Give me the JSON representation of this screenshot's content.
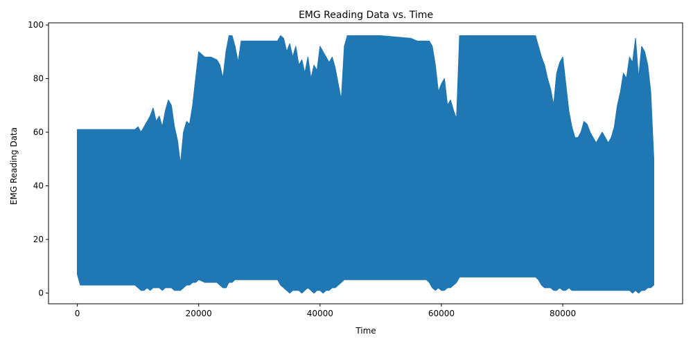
{
  "chart_data": {
    "type": "line",
    "title": "EMG Reading Data vs. Time",
    "xlabel": "Time",
    "ylabel": "EMG Reading Data",
    "xlim": [
      -4750,
      99750
    ],
    "ylim": [
      -4,
      100.8
    ],
    "x_ticks": [
      0,
      20000,
      40000,
      60000,
      80000
    ],
    "x_tick_labels": [
      "0",
      "20000",
      "40000",
      "60000",
      "80000"
    ],
    "y_ticks": [
      0,
      20,
      40,
      60,
      80,
      100
    ],
    "y_tick_labels": [
      "0",
      "20",
      "40",
      "60",
      "80",
      "100"
    ],
    "grid": false,
    "legend": "none",
    "colors": {
      "line": "#1f77b4",
      "frame": "#000000",
      "background": "#ffffff"
    },
    "series": [
      {
        "x": [
          0,
          500,
          2000,
          5000,
          8000,
          9500,
          10000,
          10500,
          11000,
          11500,
          12000,
          12500,
          13000,
          13500,
          14000,
          14500,
          15000,
          15500,
          16000,
          16500,
          17000,
          17500,
          18000,
          18500,
          19000,
          19500,
          20000,
          21000,
          22000,
          23000,
          23500,
          24000,
          24500,
          25000,
          25500,
          26000,
          26500,
          27000,
          30000,
          33000,
          33500,
          34000,
          34500,
          35000,
          35500,
          36000,
          36500,
          37000,
          37500,
          38000,
          38500,
          39000,
          39500,
          40000,
          40500,
          41000,
          41500,
          42000,
          42500,
          43000,
          43500,
          44000,
          44500,
          45000,
          50000,
          55000,
          56000,
          57000,
          57500,
          58000,
          58500,
          59000,
          59500,
          60000,
          60500,
          61000,
          61500,
          62000,
          62500,
          63000,
          65000,
          70000,
          75000,
          75500,
          76000,
          76500,
          77000,
          77500,
          78000,
          78500,
          79000,
          79500,
          80000,
          80500,
          81000,
          81500,
          82000,
          82500,
          83000,
          83500,
          84000,
          84500,
          85000,
          85500,
          86000,
          86500,
          87000,
          87500,
          88000,
          88500,
          89000,
          89500,
          90000,
          90500,
          91000,
          91500,
          92000,
          92500,
          93000,
          93500,
          94000,
          94500,
          95000
        ],
        "y_max": [
          61,
          61,
          61,
          61,
          61,
          61,
          62,
          60,
          62,
          64,
          66,
          69,
          64,
          66,
          62,
          68,
          72,
          70,
          62,
          57,
          48,
          60,
          64,
          63,
          70,
          80,
          90,
          88,
          88,
          87,
          85,
          80,
          90,
          96,
          96,
          92,
          86,
          94,
          94,
          94,
          96,
          95,
          90,
          93,
          88,
          92,
          85,
          87,
          82,
          88,
          80,
          85,
          83,
          92,
          90,
          88,
          86,
          88,
          84,
          78,
          72,
          92,
          96,
          96,
          96,
          95,
          94,
          94,
          94,
          94,
          92,
          85,
          75,
          78,
          80,
          70,
          72,
          68,
          65,
          96,
          96,
          96,
          96,
          96,
          92,
          88,
          85,
          80,
          76,
          70,
          82,
          86,
          88,
          78,
          68,
          62,
          58,
          58,
          60,
          64,
          63,
          60,
          58,
          56,
          58,
          60,
          58,
          56,
          58,
          62,
          70,
          75,
          82,
          80,
          88,
          86,
          95,
          80,
          92,
          90,
          85,
          75,
          50
        ],
        "y_min": [
          7,
          3,
          3,
          3,
          3,
          3,
          2,
          1,
          1,
          2,
          1,
          2,
          2,
          2,
          1,
          2,
          2,
          2,
          1,
          1,
          1,
          2,
          3,
          3,
          4,
          4,
          5,
          4,
          4,
          4,
          3,
          2,
          2,
          4,
          4,
          5,
          5,
          5,
          5,
          5,
          3,
          2,
          1,
          0,
          1,
          1,
          1,
          0,
          1,
          2,
          1,
          0,
          1,
          1,
          0,
          1,
          1,
          2,
          2,
          3,
          4,
          5,
          5,
          5,
          5,
          5,
          5,
          5,
          5,
          4,
          2,
          1,
          2,
          1,
          1,
          2,
          2,
          3,
          4,
          6,
          6,
          6,
          6,
          6,
          5,
          3,
          2,
          2,
          2,
          1,
          1,
          2,
          1,
          1,
          2,
          1,
          1,
          1,
          1,
          1,
          1,
          1,
          1,
          1,
          1,
          1,
          1,
          1,
          1,
          1,
          1,
          1,
          1,
          1,
          1,
          0,
          1,
          0,
          1,
          1,
          2,
          2,
          3
        ]
      }
    ]
  }
}
